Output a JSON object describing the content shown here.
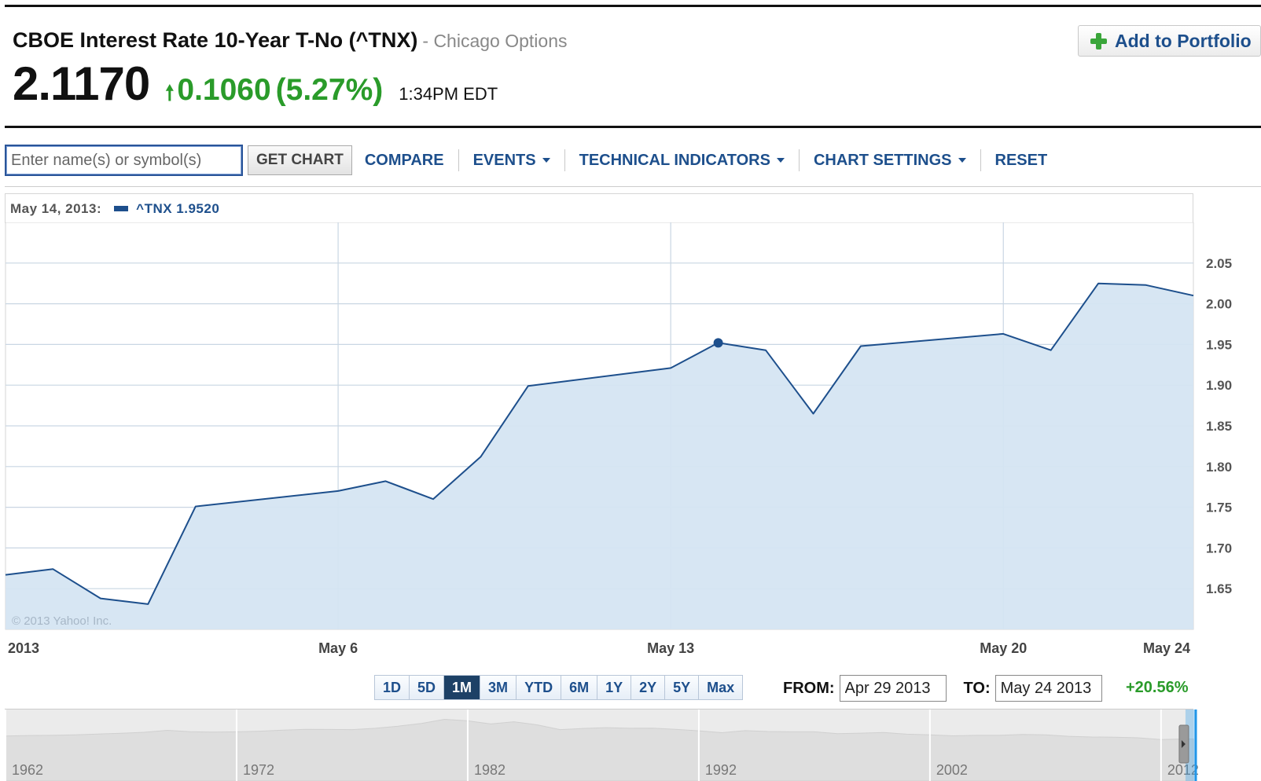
{
  "quote": {
    "title": "CBOE Interest Rate 10-Year T-No (^TNX)",
    "exchange": "- Chicago Options",
    "price": "2.1170",
    "change": "0.1060",
    "change_pct": "(5.27%)",
    "time": "1:34PM EDT",
    "add_portfolio_label": "Add to Portfolio"
  },
  "toolbar": {
    "symbol_placeholder": "Enter name(s) or symbol(s)",
    "get_chart_label": "GET CHART",
    "compare_label": "COMPARE",
    "events_label": "EVENTS",
    "technical_label": "TECHNICAL INDICATORS",
    "settings_label": "CHART SETTINGS",
    "reset_label": "RESET"
  },
  "legend": {
    "date": "May 14, 2013:",
    "series": "^TNX 1.9520"
  },
  "range": {
    "buttons": [
      "1D",
      "5D",
      "1M",
      "3M",
      "YTD",
      "6M",
      "1Y",
      "2Y",
      "5Y",
      "Max"
    ],
    "active": "1M",
    "from_label": "FROM:",
    "from_value": "Apr 29 2013",
    "to_label": "TO:",
    "to_value": "May 24 2013",
    "change": "+20.56%"
  },
  "colors": {
    "line": "#1d4f8c",
    "fill": "#d5e5f2",
    "gain": "#2a9b2a",
    "grid": "#c9d6e3"
  },
  "chart_data": {
    "type": "area",
    "copyright": "© 2013 Yahoo! Inc.",
    "x": [
      "2013-04-29",
      "2013-04-30",
      "2013-05-01",
      "2013-05-02",
      "2013-05-03",
      "2013-05-06",
      "2013-05-07",
      "2013-05-08",
      "2013-05-09",
      "2013-05-10",
      "2013-05-13",
      "2013-05-14",
      "2013-05-15",
      "2013-05-16",
      "2013-05-17",
      "2013-05-20",
      "2013-05-21",
      "2013-05-22",
      "2013-05-23",
      "2013-05-24"
    ],
    "series": [
      {
        "name": "^TNX",
        "values": [
          1.667,
          1.674,
          1.638,
          1.631,
          1.751,
          1.77,
          1.782,
          1.76,
          1.812,
          1.899,
          1.921,
          1.952,
          1.943,
          1.865,
          1.948,
          1.963,
          1.943,
          2.025,
          2.023,
          2.01
        ]
      }
    ],
    "highlight_date": "2013-05-14",
    "ylim": [
      1.6,
      2.1
    ],
    "yticks": [
      "2.05",
      "2.00",
      "1.95",
      "1.90",
      "1.85",
      "1.80",
      "1.75",
      "1.70",
      "1.65"
    ],
    "xticks": [
      {
        "date": "2013-04-29",
        "label": "2013"
      },
      {
        "date": "2013-05-06",
        "label": "May 6"
      },
      {
        "date": "2013-05-13",
        "label": "May 13"
      },
      {
        "date": "2013-05-20",
        "label": "May 20"
      },
      {
        "date": "2013-05-24",
        "label": "May 24"
      }
    ],
    "grid": true,
    "legend": "top-left"
  },
  "navigator": {
    "year_labels": [
      "1962",
      "1972",
      "1982",
      "1992",
      "2002",
      "2012"
    ],
    "history": [
      3.9,
      4.2,
      4.3,
      4.6,
      5.1,
      5.5,
      6.1,
      7.3,
      6.5,
      6.2,
      6.4,
      6.8,
      7.4,
      7.9,
      7.8,
      7.7,
      8.5,
      9.8,
      11.4,
      13.9,
      13.0,
      11.1,
      12.4,
      10.6,
      7.7,
      8.4,
      8.9,
      8.5,
      8.6,
      7.9,
      7.0,
      5.9,
      7.1,
      6.6,
      6.4,
      6.4,
      5.3,
      5.6,
      6.0,
      5.0,
      4.6,
      4.0,
      4.3,
      4.3,
      4.8,
      4.6,
      3.7,
      3.3,
      3.2,
      2.8,
      1.8,
      2.1
    ],
    "window_start_year": 2013.33,
    "window_end_year": 2013.4
  }
}
